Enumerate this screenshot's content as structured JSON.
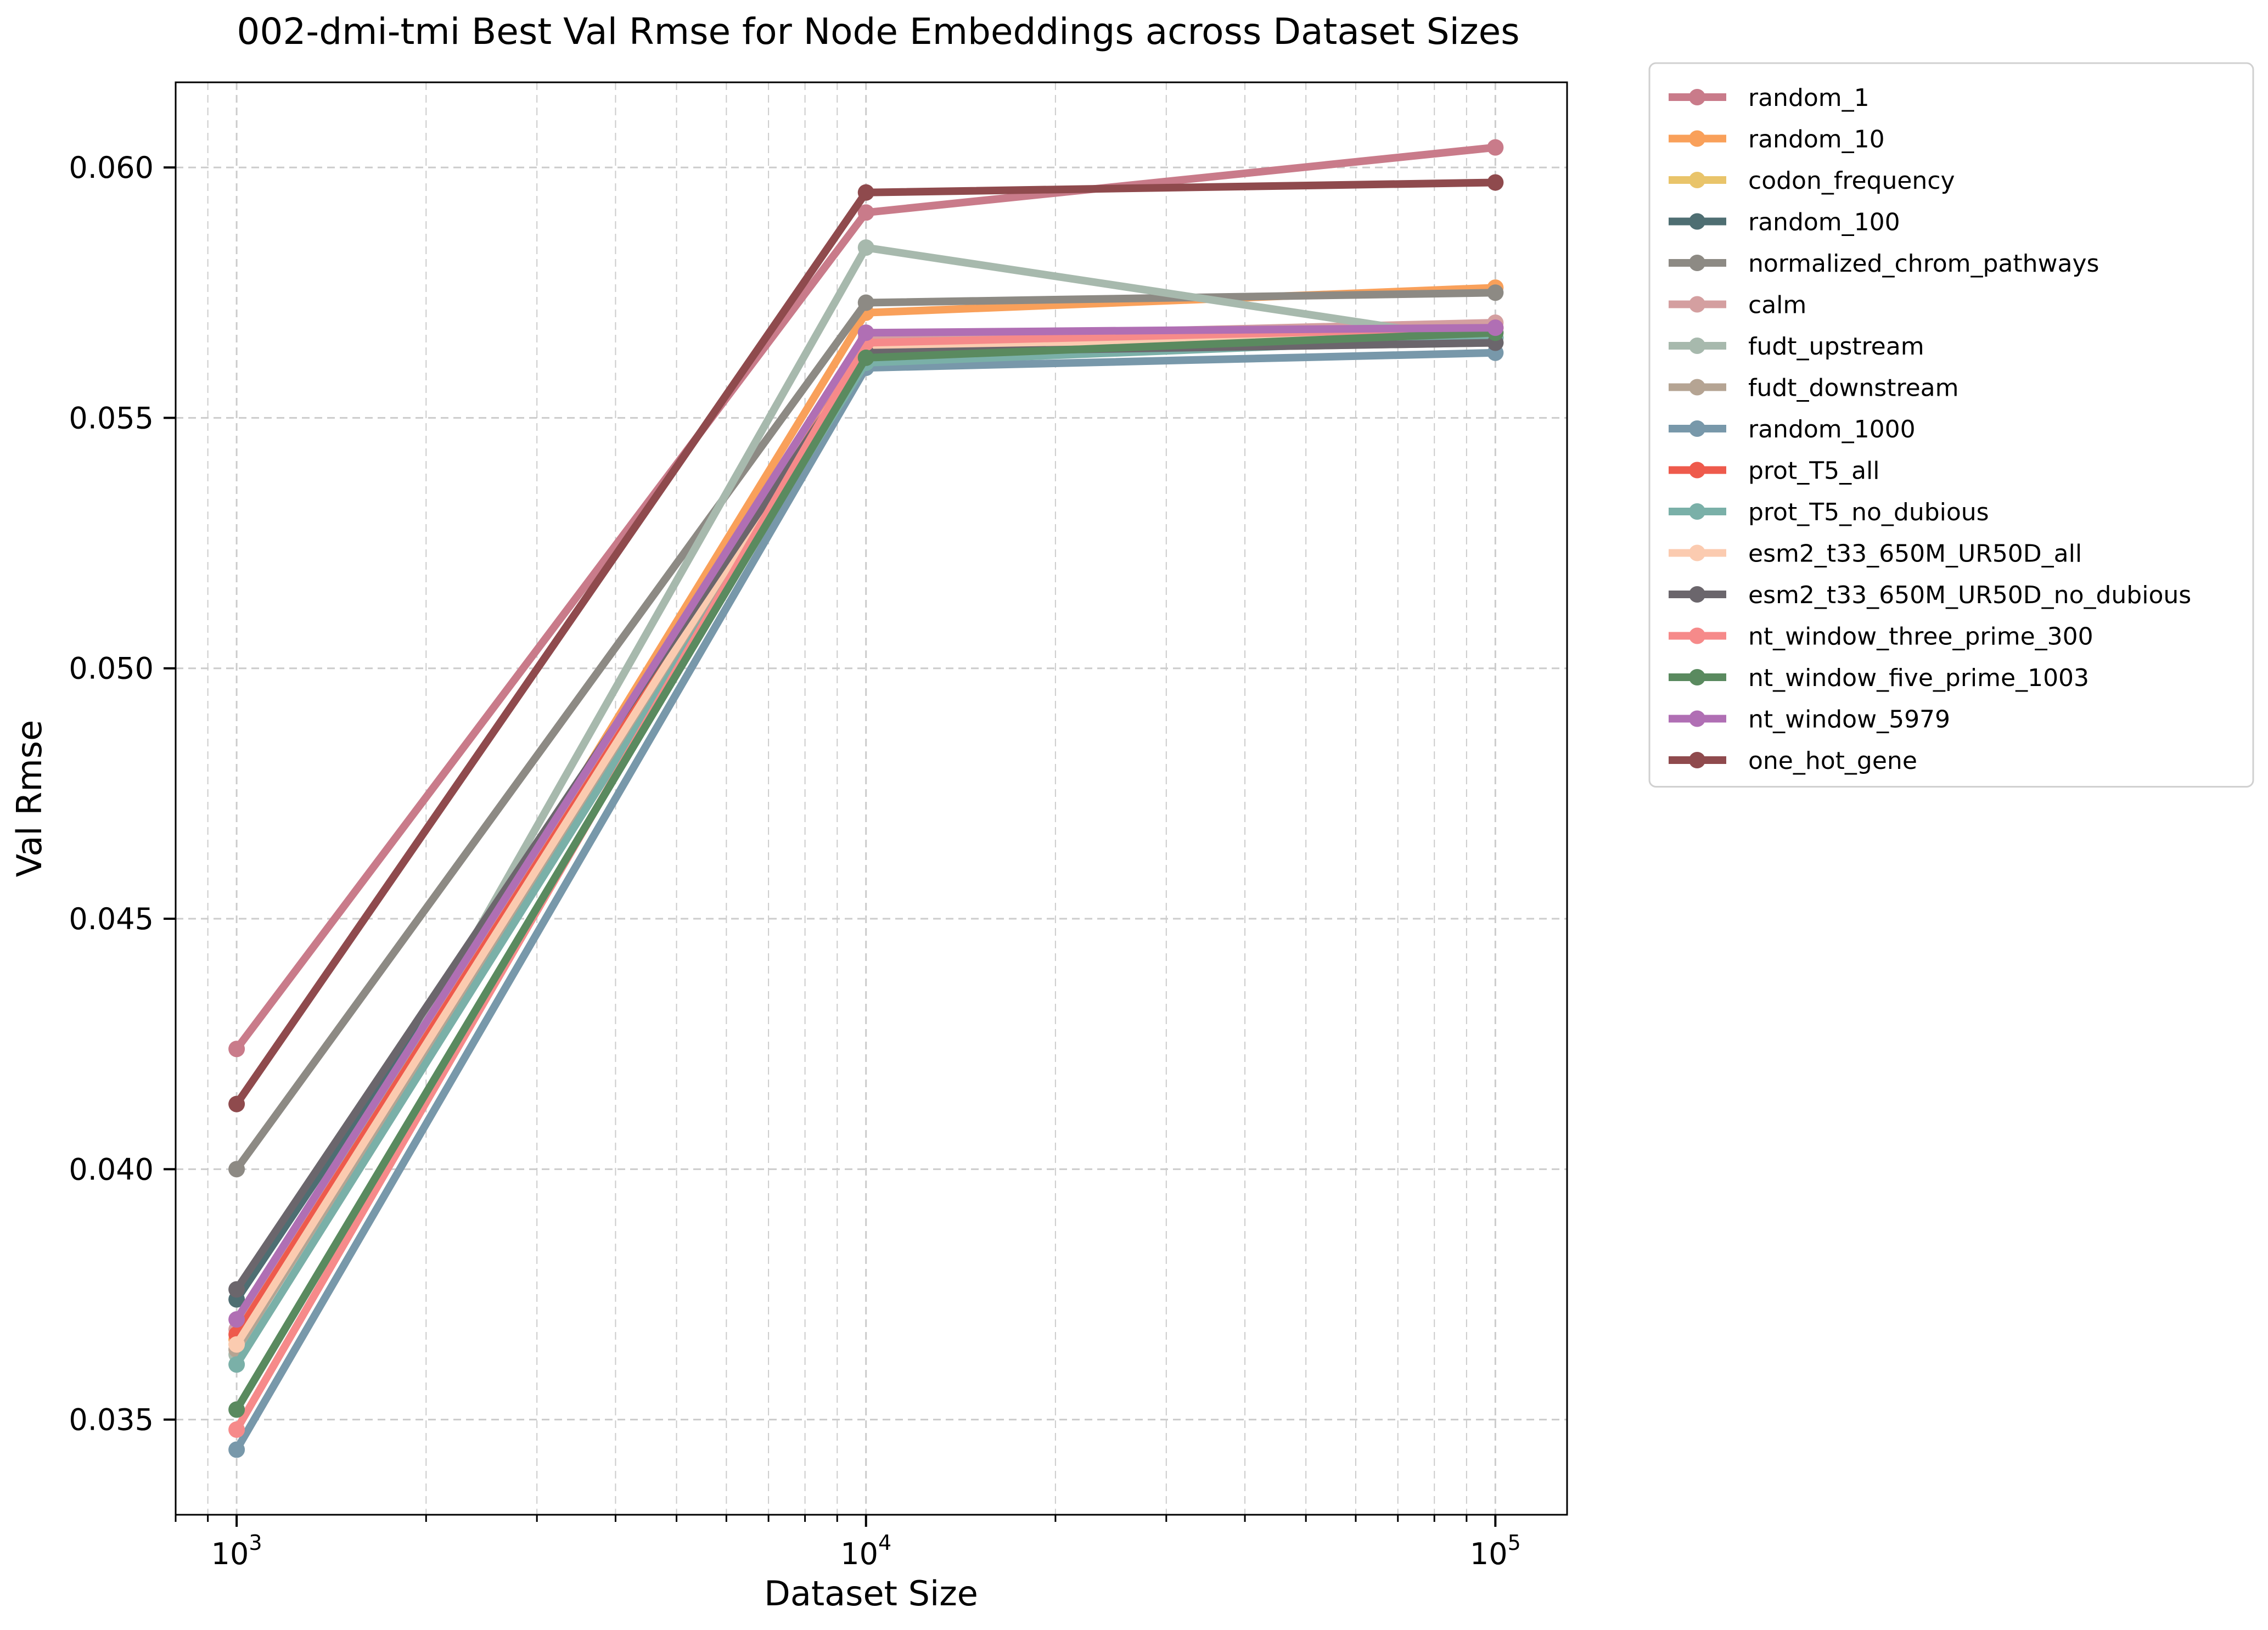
{
  "chart_data": {
    "type": "line",
    "title": "002-dmi-tmi Best Val Rmse for Node Embeddings across Dataset Sizes",
    "xlabel": "Dataset Size",
    "ylabel": "Val Rmse",
    "xscale": "log",
    "xlim": [
      800,
      130000
    ],
    "ylim": [
      0.0331,
      0.0617
    ],
    "x": [
      1000,
      10000,
      100000
    ],
    "xticks": [
      {
        "value": 1000,
        "base": "10",
        "exp": "3"
      },
      {
        "value": 10000,
        "base": "10",
        "exp": "4"
      },
      {
        "value": 100000,
        "base": "10",
        "exp": "5"
      }
    ],
    "yticks": [
      {
        "value": 0.035,
        "label": "0.035"
      },
      {
        "value": 0.04,
        "label": "0.040"
      },
      {
        "value": 0.045,
        "label": "0.045"
      },
      {
        "value": 0.05,
        "label": "0.050"
      },
      {
        "value": 0.055,
        "label": "0.055"
      },
      {
        "value": 0.06,
        "label": "0.060"
      }
    ],
    "grid": true,
    "legend_position": "outside-top-right",
    "series": [
      {
        "name": "random_1",
        "color": "#c97b8a",
        "values": [
          0.0424,
          0.0591,
          0.0604
        ]
      },
      {
        "name": "random_10",
        "color": "#f9a05a",
        "values": [
          0.0366,
          0.0571,
          0.0576
        ]
      },
      {
        "name": "codon_frequency",
        "color": "#e9c46a",
        "values": [
          0.0365,
          0.0565,
          0.0568
        ]
      },
      {
        "name": "random_100",
        "color": "#4e6e72",
        "values": [
          0.0374,
          0.0562,
          0.0566
        ]
      },
      {
        "name": "normalized_chrom_pathways",
        "color": "#8d8a84",
        "values": [
          0.04,
          0.0573,
          0.0575
        ]
      },
      {
        "name": "calm",
        "color": "#d49fa0",
        "values": [
          0.0368,
          0.0566,
          0.0569
        ]
      },
      {
        "name": "fudt_upstream",
        "color": "#a7b9ad",
        "values": [
          0.0363,
          0.0584,
          0.0565
        ]
      },
      {
        "name": "fudt_downstream",
        "color": "#b5a493",
        "values": [
          0.0364,
          0.0563,
          0.0565
        ]
      },
      {
        "name": "random_1000",
        "color": "#7898aa",
        "values": [
          0.0344,
          0.056,
          0.0563
        ]
      },
      {
        "name": "prot_T5_all",
        "color": "#ee5a4c",
        "values": [
          0.0367,
          0.0564,
          0.0568
        ]
      },
      {
        "name": "prot_T5_no_dubious",
        "color": "#7ab0a8",
        "values": [
          0.0361,
          0.0561,
          0.0566
        ]
      },
      {
        "name": "esm2_t33_650M_UR50D_all",
        "color": "#fbcbb0",
        "values": [
          0.0365,
          0.0564,
          0.0567
        ]
      },
      {
        "name": "esm2_t33_650M_UR50D_no_dubious",
        "color": "#6b666c",
        "values": [
          0.0376,
          0.0563,
          0.0565
        ]
      },
      {
        "name": "nt_window_three_prime_300",
        "color": "#f68a8a",
        "values": [
          0.0348,
          0.0565,
          0.0568
        ]
      },
      {
        "name": "nt_window_five_prime_1003",
        "color": "#5a8a5f",
        "values": [
          0.0352,
          0.0562,
          0.0567
        ]
      },
      {
        "name": "nt_window_5979",
        "color": "#b06fb4",
        "values": [
          0.037,
          0.0567,
          0.0568
        ]
      },
      {
        "name": "one_hot_gene",
        "color": "#8f4a4d",
        "values": [
          0.0413,
          0.0595,
          0.0597
        ]
      }
    ]
  }
}
